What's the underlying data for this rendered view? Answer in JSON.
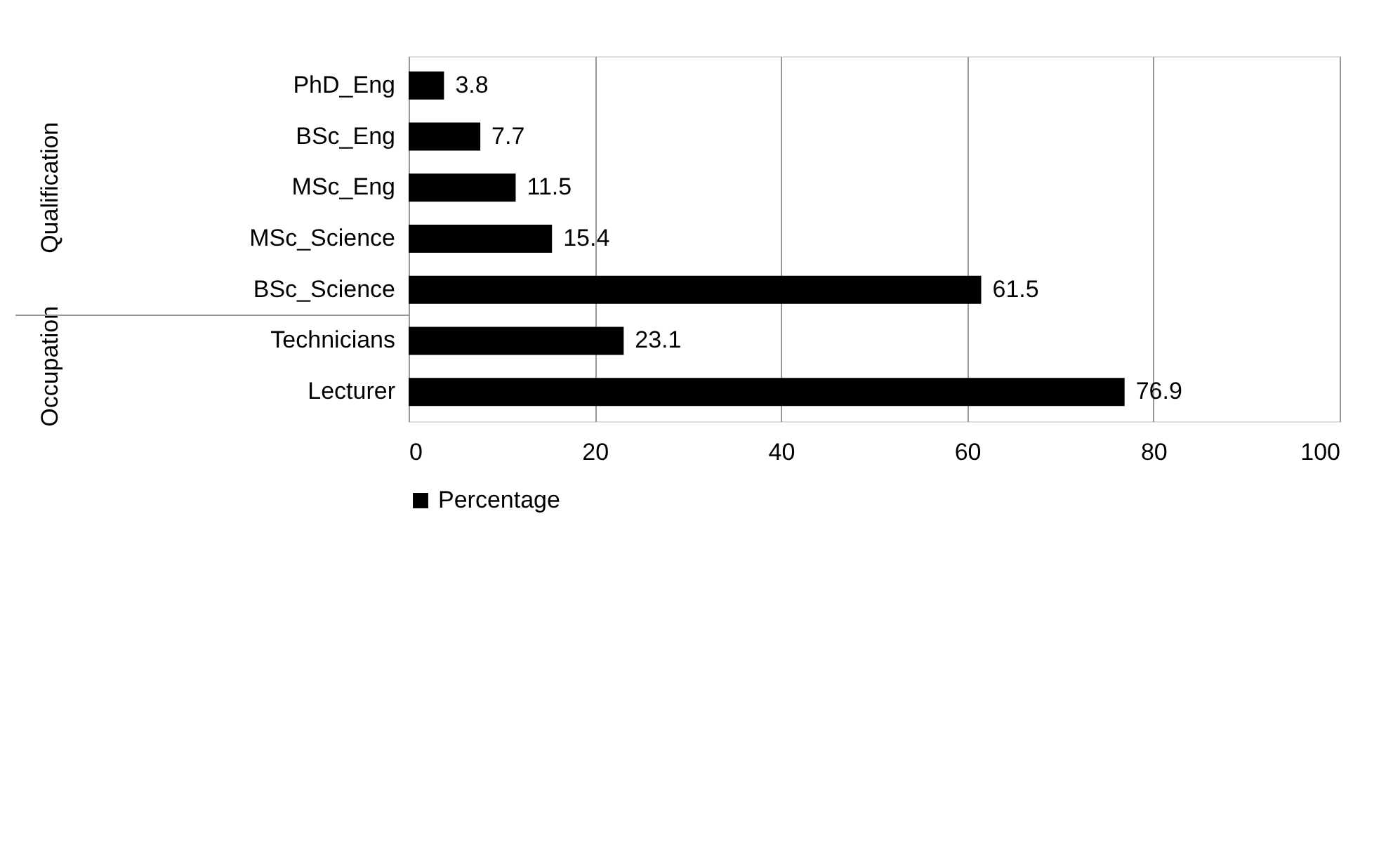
{
  "chart_data": {
    "type": "bar",
    "orientation": "horizontal",
    "categories": [
      "PhD_Eng",
      "BSc_Eng",
      "MSc_Eng",
      "MSc_Science",
      "BSc_Science",
      "Technicians",
      "Lecturer"
    ],
    "series": [
      {
        "name": "Percentage",
        "color": "#000000",
        "values": [
          3.8,
          7.7,
          11.5,
          15.4,
          61.5,
          23.1,
          76.9
        ]
      }
    ],
    "xlim": [
      0,
      100
    ],
    "xticks": [
      0,
      20,
      40,
      60,
      80,
      100
    ],
    "grid": "x",
    "legend": "bottom",
    "data_labels": true,
    "annotations": [
      "Qualification",
      "Occupation"
    ]
  }
}
